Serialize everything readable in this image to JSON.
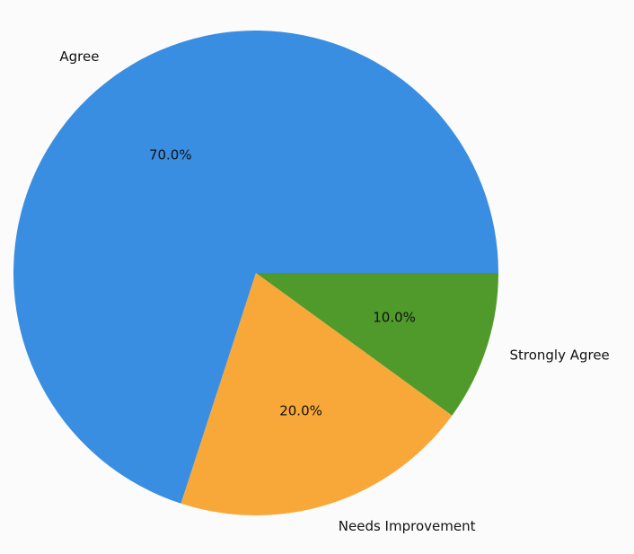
{
  "chart_data": {
    "type": "pie",
    "categories": [
      "Agree",
      "Needs Improvement",
      "Strongly Agree"
    ],
    "values": [
      70,
      20,
      10
    ],
    "value_labels": [
      "70.0%",
      "20.0%",
      "10.0%"
    ],
    "colors": [
      "#3a8ee2",
      "#f8a839",
      "#4f9a2b"
    ]
  }
}
